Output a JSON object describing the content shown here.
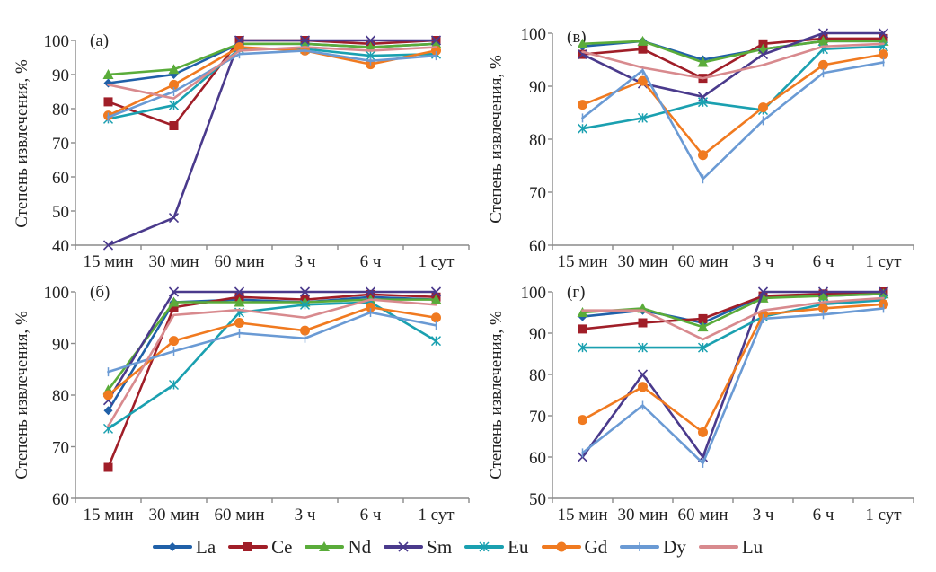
{
  "chart_data": [
    {
      "type": "line",
      "panel_label": "(а)",
      "xlabel": "",
      "ylabel": "Степень извлечения, %",
      "categories": [
        "15 мин",
        "30 мин",
        "60 мин",
        "3 ч",
        "6 ч",
        "1 сут"
      ],
      "ylim": [
        40,
        100
      ],
      "yticks": [
        40,
        50,
        60,
        70,
        80,
        90,
        100
      ],
      "grid": false,
      "series": [
        {
          "name": "La",
          "values": [
            87.5,
            90,
            99,
            99,
            98,
            99
          ]
        },
        {
          "name": "Ce",
          "values": [
            82,
            75,
            100,
            100,
            99,
            100
          ]
        },
        {
          "name": "Nd",
          "values": [
            90,
            91.5,
            99,
            99,
            98,
            99
          ]
        },
        {
          "name": "Sm",
          "values": [
            40,
            48,
            100,
            100,
            100,
            100
          ]
        },
        {
          "name": "Eu",
          "values": [
            77,
            81,
            97.5,
            97.5,
            95.5,
            96
          ]
        },
        {
          "name": "Gd",
          "values": [
            78,
            87,
            98,
            97,
            93,
            97
          ]
        },
        {
          "name": "Dy",
          "values": [
            77.5,
            85,
            96,
            97,
            94,
            95.5
          ]
        },
        {
          "name": "Lu",
          "values": [
            87,
            83,
            97,
            98,
            97,
            98
          ]
        }
      ]
    },
    {
      "type": "line",
      "panel_label": "(в)",
      "xlabel": "",
      "ylabel": "Степень извлечения, %",
      "categories": [
        "15 мин",
        "30 мин",
        "60 мин",
        "3 ч",
        "6 ч",
        "1 сут"
      ],
      "ylim": [
        60,
        100
      ],
      "yticks": [
        60,
        70,
        80,
        90,
        100
      ],
      "grid": false,
      "series": [
        {
          "name": "La",
          "values": [
            97.5,
            98.5,
            95,
            97,
            98.5,
            98.5
          ]
        },
        {
          "name": "Ce",
          "values": [
            96,
            97,
            91.5,
            98,
            99,
            99
          ]
        },
        {
          "name": "Nd",
          "values": [
            98,
            98.5,
            94.5,
            97,
            98.5,
            98.5
          ]
        },
        {
          "name": "Sm",
          "values": [
            96,
            90.5,
            88,
            96,
            100,
            100
          ]
        },
        {
          "name": "Eu",
          "values": [
            82,
            84,
            87,
            85.5,
            97,
            97.5
          ]
        },
        {
          "name": "Gd",
          "values": [
            86.5,
            91,
            77,
            86,
            94,
            96
          ]
        },
        {
          "name": "Dy",
          "values": [
            84,
            93,
            72.5,
            83.5,
            92.5,
            94.5
          ]
        },
        {
          "name": "Lu",
          "values": [
            96.5,
            93.5,
            91.5,
            94,
            97.5,
            98
          ]
        }
      ]
    },
    {
      "type": "line",
      "panel_label": "(б)",
      "xlabel": "",
      "ylabel": "Степень извлечения, %",
      "categories": [
        "15 мин",
        "30 мин",
        "60 мин",
        "3 ч",
        "6 ч",
        "1 сут"
      ],
      "ylim": [
        60,
        100
      ],
      "yticks": [
        60,
        70,
        80,
        90,
        100
      ],
      "grid": false,
      "series": [
        {
          "name": "La",
          "values": [
            77,
            98,
            98.5,
            98,
            99,
            98.5
          ]
        },
        {
          "name": "Ce",
          "values": [
            66,
            97,
            99,
            98.5,
            99.5,
            99
          ]
        },
        {
          "name": "Nd",
          "values": [
            81,
            98,
            98,
            98,
            98.5,
            98.5
          ]
        },
        {
          "name": "Sm",
          "values": [
            79,
            100,
            100,
            100,
            100,
            100
          ]
        },
        {
          "name": "Eu",
          "values": [
            73.5,
            82,
            96,
            97.5,
            98,
            90.5
          ]
        },
        {
          "name": "Gd",
          "values": [
            80,
            90.5,
            94,
            92.5,
            97,
            95
          ]
        },
        {
          "name": "Dy",
          "values": [
            84.5,
            88.5,
            92,
            91,
            96,
            93.5
          ]
        },
        {
          "name": "Lu",
          "values": [
            74,
            95.5,
            96.5,
            95,
            98.5,
            97.5
          ]
        }
      ]
    },
    {
      "type": "line",
      "panel_label": "(г)",
      "xlabel": "",
      "ylabel": "Степень извлечения, %",
      "categories": [
        "15 мин",
        "30 мин",
        "60 мин",
        "3 ч",
        "6 ч",
        "1 сут"
      ],
      "ylim": [
        50,
        100
      ],
      "yticks": [
        50,
        60,
        70,
        80,
        90,
        100
      ],
      "grid": false,
      "series": [
        {
          "name": "La",
          "values": [
            94,
            95.5,
            92.5,
            99,
            99,
            99.5
          ]
        },
        {
          "name": "Ce",
          "values": [
            91,
            92.5,
            93.5,
            99,
            99.5,
            100
          ]
        },
        {
          "name": "Nd",
          "values": [
            95,
            96,
            91.5,
            98.5,
            99,
            99.5
          ]
        },
        {
          "name": "Sm",
          "values": [
            60,
            80,
            60,
            100,
            100,
            100
          ]
        },
        {
          "name": "Eu",
          "values": [
            86.5,
            86.5,
            86.5,
            94,
            97,
            98
          ]
        },
        {
          "name": "Gd",
          "values": [
            69,
            77,
            66,
            94.5,
            96,
            97
          ]
        },
        {
          "name": "Dy",
          "values": [
            61,
            72.5,
            58.5,
            93.5,
            94.5,
            96
          ]
        },
        {
          "name": "Lu",
          "values": [
            95.5,
            95.5,
            88.5,
            95.5,
            97.5,
            98.5
          ]
        }
      ]
    }
  ],
  "legend": {
    "placement": "bottom-center",
    "items": [
      {
        "name": "La",
        "color": "#2060a8",
        "marker": "diamond"
      },
      {
        "name": "Ce",
        "color": "#a01e28",
        "marker": "square"
      },
      {
        "name": "Nd",
        "color": "#5aac3a",
        "marker": "triangle"
      },
      {
        "name": "Sm",
        "color": "#4a3a8c",
        "marker": "x"
      },
      {
        "name": "Eu",
        "color": "#1aa0b0",
        "marker": "asterisk"
      },
      {
        "name": "Gd",
        "color": "#f07a20",
        "marker": "circle"
      },
      {
        "name": "Dy",
        "color": "#6a9ad4",
        "marker": "plus"
      },
      {
        "name": "Lu",
        "color": "#d88a8e",
        "marker": "none"
      }
    ]
  }
}
